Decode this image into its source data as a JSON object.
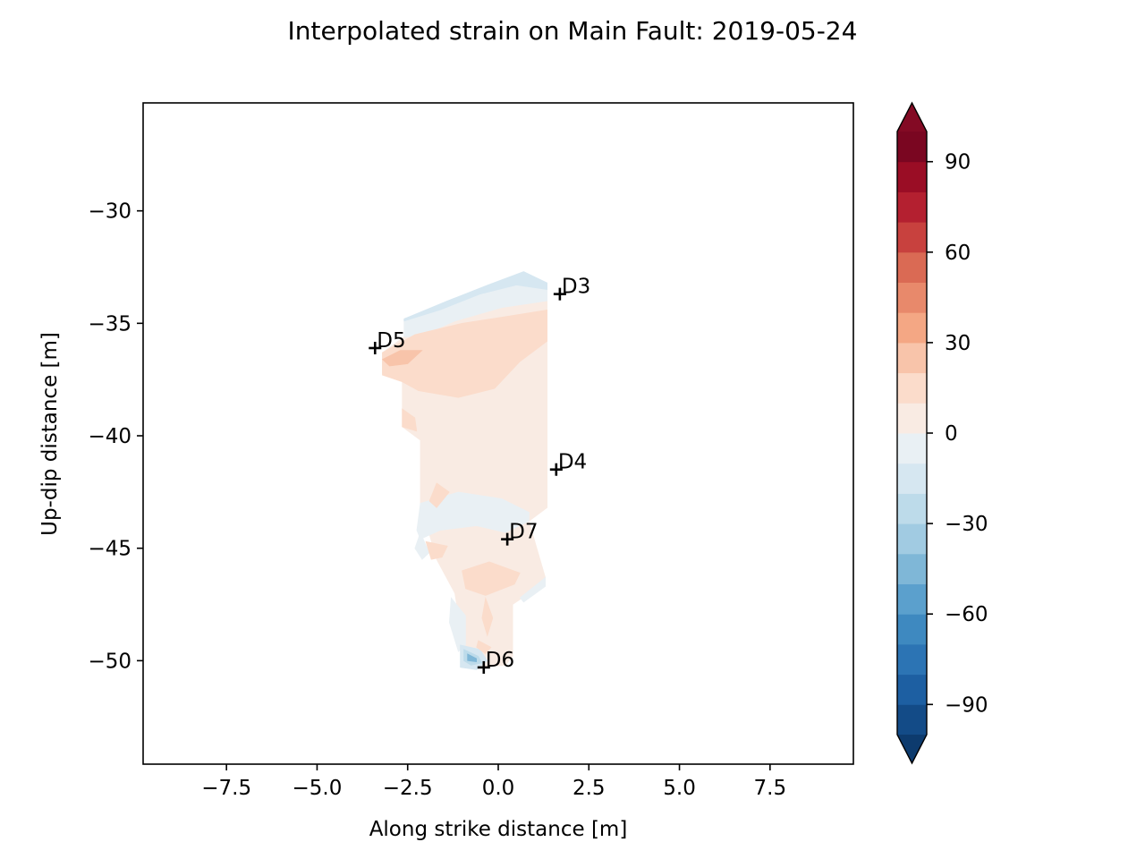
{
  "chart_data": {
    "type": "contour",
    "title": "Interpolated strain on Main Fault: 2019-05-24",
    "xlabel": "Along strike distance [m]",
    "ylabel": "Up-dip distance [m]",
    "xlim": [
      -9.8,
      9.8
    ],
    "ylim": [
      -54.6,
      -25.2
    ],
    "xticks": [
      -7.5,
      -5.0,
      -2.5,
      0.0,
      2.5,
      5.0,
      7.5
    ],
    "xtick_labels": [
      "−7.5",
      "−5.0",
      "−2.5",
      "0.0",
      "2.5",
      "5.0",
      "7.5"
    ],
    "yticks": [
      -30,
      -35,
      -40,
      -45,
      -50
    ],
    "ytick_labels": [
      "−30",
      "−35",
      "−40",
      "−45",
      "−50"
    ],
    "colormap": "RdBu_r",
    "colorbar": {
      "vmin": -100,
      "vmax": 100,
      "step": 10,
      "extend": "both",
      "ticks": [
        90,
        60,
        30,
        0,
        -30,
        -60,
        -90
      ],
      "tick_labels": [
        "90",
        "60",
        "30",
        "0",
        "−30",
        "−60",
        "−90"
      ],
      "level_colors": [
        "#134b87",
        "#1d5fa2",
        "#2c74b4",
        "#3e89c0",
        "#5ba0cd",
        "#7fb7d7",
        "#a1cbe2",
        "#bddbea",
        "#d6e7f1",
        "#e9f0f4",
        "#f9ebe3",
        "#fbdccb",
        "#f8c4aa",
        "#f4a784",
        "#e8896b",
        "#da6a54",
        "#c8413e",
        "#b42030",
        "#9a0d25",
        "#7a0621"
      ],
      "extend_low_color": "#0d3b6e",
      "extend_high_color": "#830a24"
    },
    "regions": [
      {
        "level": "0 to 10",
        "color": "#f9ebe3",
        "points": [
          [
            -2.6,
            -34.8
          ],
          [
            -1.6,
            -34.2
          ],
          [
            -0.4,
            -33.6
          ],
          [
            0.5,
            -33.2
          ],
          [
            1.35,
            -33.5
          ],
          [
            1.35,
            -43.2
          ],
          [
            0.85,
            -43.8
          ],
          [
            1.3,
            -46.3
          ],
          [
            0.95,
            -46.9
          ],
          [
            0.4,
            -47.5
          ],
          [
            0.4,
            -49.8
          ],
          [
            0.2,
            -50.2
          ],
          [
            -0.5,
            -50.3
          ],
          [
            -0.95,
            -49.5
          ],
          [
            -1.2,
            -47.0
          ],
          [
            -1.7,
            -45.5
          ],
          [
            -2.15,
            -43.0
          ],
          [
            -2.15,
            -40.2
          ],
          [
            -2.65,
            -39.6
          ],
          [
            -2.65,
            -37.5
          ],
          [
            -3.2,
            -37.2
          ],
          [
            -3.2,
            -36.3
          ],
          [
            -2.6,
            -35.6
          ]
        ]
      },
      {
        "level": "-10 to 0",
        "color": "#e9f0f4",
        "points": [
          [
            -2.6,
            -34.8
          ],
          [
            -1.6,
            -34.2
          ],
          [
            -0.4,
            -33.6
          ],
          [
            0.5,
            -33.2
          ],
          [
            1.35,
            -33.5
          ],
          [
            1.35,
            -34.0
          ],
          [
            0.1,
            -34.3
          ],
          [
            -1.2,
            -34.9
          ],
          [
            -2.2,
            -35.6
          ],
          [
            -2.6,
            -35.6
          ]
        ]
      },
      {
        "level": "-20 to -10",
        "color": "#d6e7f1",
        "points": [
          [
            -2.6,
            -34.8
          ],
          [
            -1.4,
            -34.0
          ],
          [
            -0.3,
            -33.3
          ],
          [
            0.7,
            -32.7
          ],
          [
            1.35,
            -33.2
          ],
          [
            1.35,
            -33.5
          ],
          [
            0.5,
            -33.3
          ],
          [
            -0.5,
            -33.7
          ],
          [
            -1.6,
            -34.4
          ],
          [
            -2.6,
            -34.9
          ]
        ]
      },
      {
        "level": "-10 to 0",
        "color": "#e9f0f4",
        "points": [
          [
            -2.15,
            -43.0
          ],
          [
            -1.1,
            -42.5
          ],
          [
            0.1,
            -42.8
          ],
          [
            0.85,
            -43.4
          ],
          [
            0.85,
            -43.8
          ],
          [
            0.2,
            -44.3
          ],
          [
            -0.6,
            -44.0
          ],
          [
            -1.6,
            -44.2
          ],
          [
            -2.15,
            -44.6
          ],
          [
            -2.25,
            -44.2
          ]
        ]
      },
      {
        "level": "-10 to 0",
        "color": "#e9f0f4",
        "points": [
          [
            -2.15,
            -44.3
          ],
          [
            -1.9,
            -45.2
          ],
          [
            -2.1,
            -45.5
          ],
          [
            -2.3,
            -45.0
          ]
        ]
      },
      {
        "level": "-10 to 0",
        "color": "#e9f0f4",
        "points": [
          [
            0.6,
            -47.2
          ],
          [
            1.3,
            -46.3
          ],
          [
            1.3,
            -46.7
          ],
          [
            0.7,
            -47.4
          ]
        ]
      },
      {
        "level": "-10 to 0",
        "color": "#e9f0f4",
        "points": [
          [
            -1.3,
            -47.2
          ],
          [
            -0.9,
            -48.0
          ],
          [
            -0.9,
            -49.3
          ],
          [
            -1.1,
            -49.6
          ],
          [
            -1.35,
            -48.3
          ]
        ]
      },
      {
        "level": "-20 to -10",
        "color": "#d6e7f1",
        "points": [
          [
            -1.05,
            -49.3
          ],
          [
            -0.5,
            -49.5
          ],
          [
            -0.3,
            -50.0
          ],
          [
            -0.6,
            -50.4
          ],
          [
            -1.05,
            -50.3
          ]
        ]
      },
      {
        "level": "-30 to -20",
        "color": "#bddbea",
        "points": [
          [
            -0.95,
            -49.5
          ],
          [
            -0.55,
            -49.8
          ],
          [
            -0.45,
            -50.1
          ],
          [
            -0.75,
            -50.2
          ],
          [
            -0.95,
            -50.0
          ]
        ]
      },
      {
        "level": "-50 to -40",
        "color": "#7fb7d7",
        "points": [
          [
            -0.85,
            -49.7
          ],
          [
            -0.6,
            -49.9
          ],
          [
            -0.6,
            -50.05
          ],
          [
            -0.85,
            -50.0
          ]
        ]
      },
      {
        "level": "10 to 20",
        "color": "#fbdccb",
        "points": [
          [
            -3.2,
            -36.3
          ],
          [
            -2.3,
            -35.5
          ],
          [
            -1.0,
            -35.0
          ],
          [
            0.2,
            -34.7
          ],
          [
            1.35,
            -34.4
          ],
          [
            1.35,
            -35.8
          ],
          [
            0.6,
            -36.7
          ],
          [
            -0.1,
            -37.9
          ],
          [
            -1.1,
            -38.3
          ],
          [
            -2.2,
            -38.0
          ],
          [
            -2.65,
            -37.6
          ],
          [
            -3.2,
            -37.3
          ]
        ]
      },
      {
        "level": "20 to 30",
        "color": "#f8c4aa",
        "points": [
          [
            -3.2,
            -36.6
          ],
          [
            -2.7,
            -36.2
          ],
          [
            -2.1,
            -36.2
          ],
          [
            -2.5,
            -36.8
          ],
          [
            -3.0,
            -36.9
          ]
        ]
      },
      {
        "level": "10 to 20",
        "color": "#fbdccb",
        "points": [
          [
            -2.65,
            -38.8
          ],
          [
            -2.3,
            -39.2
          ],
          [
            -2.25,
            -39.8
          ],
          [
            -2.65,
            -39.6
          ]
        ]
      },
      {
        "level": "10 to 20",
        "color": "#fbdccb",
        "points": [
          [
            -1.7,
            -42.1
          ],
          [
            -1.35,
            -42.5
          ],
          [
            -1.7,
            -43.2
          ],
          [
            -1.9,
            -42.9
          ]
        ]
      },
      {
        "level": "10 to 20",
        "color": "#fbdccb",
        "points": [
          [
            -2.0,
            -44.7
          ],
          [
            -1.4,
            -44.9
          ],
          [
            -1.55,
            -45.4
          ],
          [
            -1.85,
            -45.5
          ]
        ]
      },
      {
        "level": "10 to 20",
        "color": "#fbdccb",
        "points": [
          [
            -1.0,
            -46.0
          ],
          [
            -0.25,
            -45.6
          ],
          [
            0.6,
            -46.1
          ],
          [
            0.45,
            -46.6
          ],
          [
            -0.35,
            -47.1
          ],
          [
            -0.9,
            -46.8
          ]
        ]
      },
      {
        "level": "10 to 20",
        "color": "#fbdccb",
        "points": [
          [
            -0.35,
            -47.2
          ],
          [
            -0.15,
            -48.1
          ],
          [
            -0.3,
            -48.9
          ],
          [
            -0.45,
            -48.1
          ]
        ]
      },
      {
        "level": "10 to 20",
        "color": "#fbdccb",
        "points": [
          [
            -0.55,
            -49.1
          ],
          [
            -0.2,
            -49.4
          ],
          [
            -0.35,
            -49.7
          ],
          [
            -0.6,
            -49.4
          ]
        ]
      }
    ],
    "wells": [
      {
        "label": "D3",
        "x": 1.7,
        "y": -33.7
      },
      {
        "label": "D5",
        "x": -3.4,
        "y": -36.1
      },
      {
        "label": "D4",
        "x": 1.6,
        "y": -41.5
      },
      {
        "label": "D7",
        "x": 0.25,
        "y": -44.6
      },
      {
        "label": "D6",
        "x": -0.4,
        "y": -50.3
      }
    ]
  }
}
